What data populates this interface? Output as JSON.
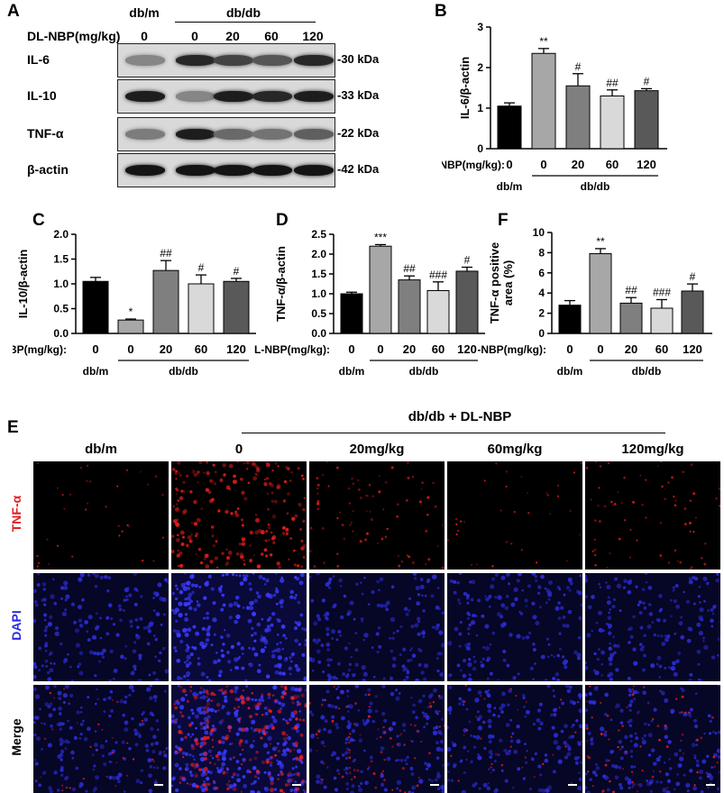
{
  "panel_labels": {
    "A": "A",
    "B": "B",
    "C": "C",
    "D": "D",
    "F": "F",
    "E": "E"
  },
  "western_blot": {
    "dose_header": "DL-NBP(mg/kg)",
    "group_dbm": "db/m",
    "group_dbdb": "db/db",
    "doses": [
      "0",
      "0",
      "20",
      "60",
      "120"
    ],
    "rows": [
      {
        "label": "IL-6",
        "kda": "-30 kDa",
        "intensity": [
          0.35,
          0.85,
          0.7,
          0.6,
          0.85
        ]
      },
      {
        "label": "IL-10",
        "kda": "-33 kDa",
        "intensity": [
          0.9,
          0.35,
          0.9,
          0.85,
          0.9
        ]
      },
      {
        "label": "TNF-α",
        "kda": "-22 kDa",
        "intensity": [
          0.4,
          0.9,
          0.5,
          0.45,
          0.55
        ]
      },
      {
        "label": "β-actin",
        "kda": "-42 kDa",
        "intensity": [
          0.95,
          0.95,
          0.95,
          0.95,
          0.95
        ]
      }
    ]
  },
  "chart_data": [
    {
      "id": "B",
      "type": "bar",
      "title": "",
      "ylabel": "IL-6/β-actin",
      "ylim": [
        0,
        3
      ],
      "ticks": [
        "0",
        "1",
        "2",
        "3"
      ],
      "categories": [
        "0",
        "0",
        "20",
        "60",
        "120"
      ],
      "values": [
        1.05,
        2.35,
        1.55,
        1.3,
        1.43
      ],
      "errors": [
        0.08,
        0.12,
        0.3,
        0.15,
        0.05
      ],
      "sig": [
        "",
        "**",
        "#",
        "##",
        "#"
      ],
      "colors": [
        "#000000",
        "#a7a7a7",
        "#7f7f7f",
        "#d9d9d9",
        "#595959"
      ],
      "dose_label": "DL-NBP(mg/kg):",
      "group_dbm": "db/m",
      "group_dbdb": "db/db"
    },
    {
      "id": "C",
      "type": "bar",
      "title": "",
      "ylabel": "IL-10/β-actin",
      "ylim": [
        0,
        2
      ],
      "ticks": [
        "0.0",
        "0.5",
        "1.0",
        "1.5",
        "2.0"
      ],
      "categories": [
        "0",
        "0",
        "20",
        "60",
        "120"
      ],
      "values": [
        1.05,
        0.27,
        1.27,
        1.0,
        1.05
      ],
      "errors": [
        0.08,
        0.02,
        0.2,
        0.18,
        0.06
      ],
      "sig": [
        "",
        "*",
        "##",
        "#",
        "#"
      ],
      "colors": [
        "#000000",
        "#a7a7a7",
        "#7f7f7f",
        "#d9d9d9",
        "#595959"
      ],
      "dose_label": "DL-NBP(mg/kg):",
      "group_dbm": "db/m",
      "group_dbdb": "db/db"
    },
    {
      "id": "D",
      "type": "bar",
      "title": "",
      "ylabel": "TNF-α/β-actin",
      "ylim": [
        0,
        2.5
      ],
      "ticks": [
        "0.0",
        "0.5",
        "1.0",
        "1.5",
        "2.0",
        "2.5"
      ],
      "categories": [
        "0",
        "0",
        "20",
        "60",
        "120"
      ],
      "values": [
        1.0,
        2.2,
        1.35,
        1.08,
        1.57
      ],
      "errors": [
        0.04,
        0.04,
        0.1,
        0.22,
        0.1
      ],
      "sig": [
        "",
        "***",
        "##",
        "###",
        "#"
      ],
      "colors": [
        "#000000",
        "#a7a7a7",
        "#7f7f7f",
        "#d9d9d9",
        "#595959"
      ],
      "dose_label": "DL-NBP(mg/kg):",
      "group_dbm": "db/m",
      "group_dbdb": "db/db"
    },
    {
      "id": "F",
      "type": "bar",
      "title": "",
      "ylabel": "TNF-α positive\narea (%)",
      "ylim": [
        0,
        10
      ],
      "ticks": [
        "0",
        "2",
        "4",
        "6",
        "8",
        "10"
      ],
      "categories": [
        "0",
        "0",
        "20",
        "60",
        "120"
      ],
      "values": [
        2.8,
        7.9,
        3.0,
        2.5,
        4.2
      ],
      "errors": [
        0.45,
        0.5,
        0.55,
        0.85,
        0.7
      ],
      "sig": [
        "",
        "**",
        "##",
        "###",
        "#"
      ],
      "colors": [
        "#000000",
        "#a7a7a7",
        "#7f7f7f",
        "#d9d9d9",
        "#595959"
      ],
      "dose_label": "DL-NBP(mg/kg):",
      "group_dbm": "db/m",
      "group_dbdb": "db/db"
    }
  ],
  "if_panel": {
    "header": "db/db + DL-NBP",
    "columns": [
      "db/m",
      "0",
      "20mg/kg",
      "60mg/kg",
      "120mg/kg"
    ],
    "rows": [
      {
        "label": "TNF-α",
        "color": "#e02020",
        "kind": "tnf"
      },
      {
        "label": "DAPI",
        "color": "#2a2ae0",
        "kind": "dapi"
      },
      {
        "label": "Merge",
        "color": "#000000",
        "kind": "merge"
      }
    ],
    "tnf_level": [
      0.15,
      0.95,
      0.35,
      0.15,
      0.3
    ]
  }
}
